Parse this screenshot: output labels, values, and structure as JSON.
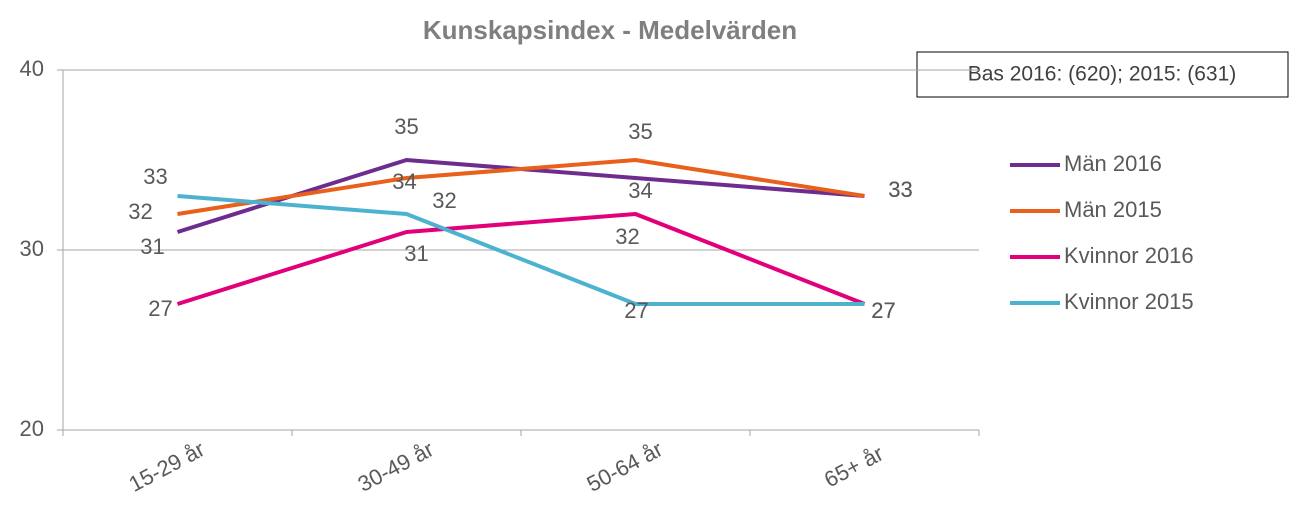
{
  "chart_data": {
    "type": "line",
    "title": "Kunskapsindex - Medelvärden",
    "annotation": "Bas 2016: (620); 2015: (631)",
    "categories": [
      "15-29 år",
      "30-49 år",
      "50-64 år",
      "65+ år"
    ],
    "series": [
      {
        "name": "Män 2016",
        "color": "#6e2c8f",
        "values": [
          31,
          35,
          34,
          33
        ]
      },
      {
        "name": "Män 2015",
        "color": "#e8601c",
        "values": [
          32,
          34,
          35,
          33
        ]
      },
      {
        "name": "Kvinnor 2016",
        "color": "#e2007a",
        "values": [
          27,
          31,
          32,
          27
        ]
      },
      {
        "name": "Kvinnor 2015",
        "color": "#4bb3d0",
        "values": [
          33,
          32,
          27,
          27
        ]
      }
    ],
    "ylim": [
      20,
      40
    ],
    "yticks": [
      20,
      30,
      40
    ],
    "grid": true,
    "legend": "right"
  }
}
